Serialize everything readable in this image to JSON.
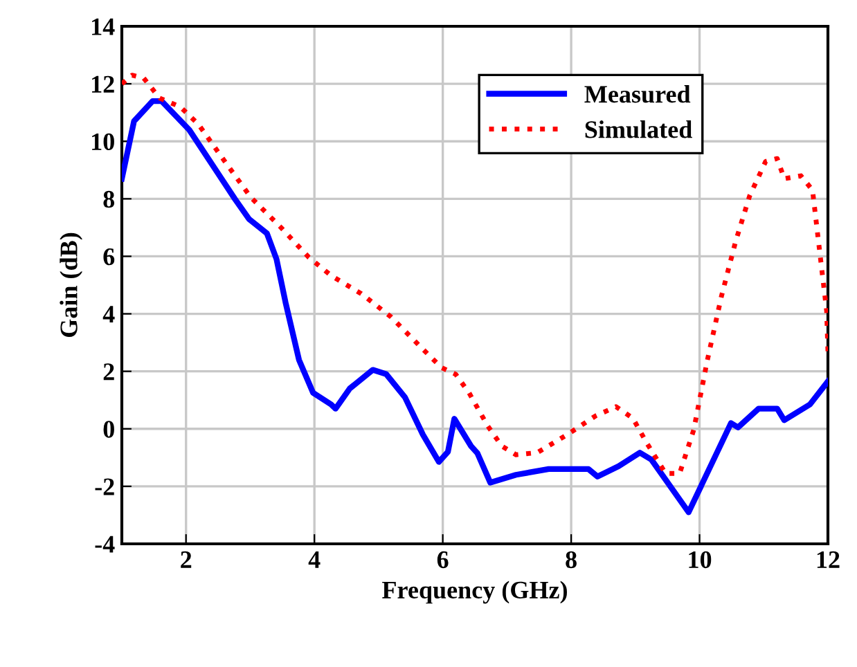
{
  "chart_data": {
    "type": "line",
    "xlabel": "Frequency (GHz)",
    "ylabel": "Gain (dB)",
    "xlim": [
      1,
      12
    ],
    "xticks": [
      2,
      4,
      6,
      8,
      10,
      12
    ],
    "ylim": [
      -4,
      14
    ],
    "yticks": [
      -4,
      -2,
      0,
      2,
      4,
      6,
      8,
      10,
      12,
      14
    ],
    "grid": true,
    "legend": "top right",
    "series": [
      {
        "name": "Measured",
        "color": "#0000ff",
        "line_style": "solid",
        "x": [
          1.0,
          1.19,
          1.48,
          1.62,
          2.05,
          2.76,
          2.98,
          3.26,
          3.41,
          3.55,
          3.76,
          3.98,
          4.26,
          4.33,
          4.55,
          4.91,
          5.12,
          5.41,
          5.69,
          5.94,
          6.08,
          6.18,
          6.44,
          6.54,
          6.74,
          7.14,
          7.65,
          8.27,
          8.41,
          8.74,
          9.07,
          9.25,
          9.83,
          10.49,
          10.6,
          10.92,
          11.21,
          11.32,
          11.72,
          12.0
        ],
        "values": [
          8.7,
          10.7,
          11.4,
          11.4,
          10.4,
          8.0,
          7.3,
          6.8,
          5.9,
          4.4,
          2.4,
          1.25,
          0.85,
          0.7,
          1.4,
          2.05,
          1.9,
          1.1,
          -0.2,
          -1.15,
          -0.8,
          0.35,
          -0.6,
          -0.85,
          -1.87,
          -1.6,
          -1.4,
          -1.4,
          -1.66,
          -1.3,
          -0.83,
          -1.07,
          -2.9,
          0.2,
          0.05,
          0.7,
          0.7,
          0.3,
          0.85,
          1.65
        ]
      },
      {
        "name": "Simulated",
        "color": "#ff0000",
        "line_style": "dotted",
        "x": [
          1.0,
          1.16,
          1.34,
          1.59,
          1.91,
          2.19,
          2.62,
          3.01,
          3.48,
          3.91,
          4.26,
          4.73,
          5.19,
          5.69,
          5.98,
          6.2,
          6.41,
          6.7,
          6.92,
          7.14,
          7.47,
          7.94,
          8.38,
          8.7,
          8.96,
          9.18,
          9.47,
          9.69,
          9.91,
          10.12,
          10.34,
          10.56,
          10.78,
          11.03,
          11.21,
          11.32,
          11.58,
          11.76,
          11.87,
          11.98,
          12.0
        ],
        "values": [
          12.0,
          12.3,
          12.2,
          11.5,
          11.2,
          10.6,
          9.25,
          8.05,
          7.0,
          5.97,
          5.33,
          4.7,
          3.9,
          2.77,
          2.13,
          1.9,
          1.25,
          0.1,
          -0.6,
          -0.9,
          -0.83,
          -0.2,
          0.45,
          0.77,
          0.37,
          -0.5,
          -1.55,
          -1.55,
          -0.03,
          2.37,
          4.6,
          6.5,
          8.1,
          9.3,
          9.4,
          8.7,
          8.8,
          8.3,
          6.2,
          4.1,
          2.7
        ]
      }
    ]
  }
}
